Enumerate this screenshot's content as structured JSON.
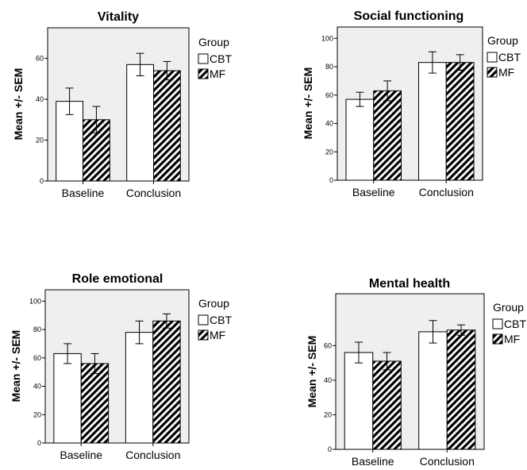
{
  "chart_data": [
    {
      "type": "bar",
      "title": "Vitality",
      "ylabel": "Mean +/- SEM",
      "xlabel": "",
      "ylim": [
        0,
        75
      ],
      "yticks": [
        0,
        20,
        40,
        60
      ],
      "categories": [
        "Baseline",
        "Conclusion"
      ],
      "series": [
        {
          "name": "CBT",
          "values": [
            39,
            57
          ],
          "errors": [
            6.5,
            5.5
          ]
        },
        {
          "name": "MF",
          "values": [
            30,
            54
          ],
          "errors": [
            6.5,
            4.5
          ]
        }
      ],
      "legend": {
        "title": "Group",
        "position": "right"
      }
    },
    {
      "type": "bar",
      "title": "Social functioning",
      "ylabel": "Mean +/- SEM",
      "xlabel": "",
      "ylim": [
        0,
        108
      ],
      "yticks": [
        0,
        20,
        40,
        60,
        80,
        100
      ],
      "categories": [
        "Baseline",
        "Conclusion"
      ],
      "series": [
        {
          "name": "CBT",
          "values": [
            57,
            83
          ],
          "errors": [
            5,
            7.5
          ]
        },
        {
          "name": "MF",
          "values": [
            63,
            83
          ],
          "errors": [
            7,
            5.5
          ]
        }
      ],
      "legend": {
        "title": "Group",
        "position": "right"
      }
    },
    {
      "type": "bar",
      "title": "Role emotional",
      "ylabel": "Mean +/- SEM",
      "xlabel": "",
      "ylim": [
        0,
        108
      ],
      "yticks": [
        0,
        20,
        40,
        60,
        80,
        100
      ],
      "categories": [
        "Baseline",
        "Conclusion"
      ],
      "series": [
        {
          "name": "CBT",
          "values": [
            63,
            78
          ],
          "errors": [
            7,
            8
          ]
        },
        {
          "name": "MF",
          "values": [
            56,
            86
          ],
          "errors": [
            7,
            5
          ]
        }
      ],
      "legend": {
        "title": "Group",
        "position": "right"
      }
    },
    {
      "type": "bar",
      "title": "Mental health",
      "ylabel": "Mean +/- SEM",
      "xlabel": "",
      "ylim": [
        0,
        90
      ],
      "yticks": [
        0,
        20,
        40,
        60
      ],
      "categories": [
        "Baseline",
        "Conclusion"
      ],
      "series": [
        {
          "name": "CBT",
          "values": [
            56,
            68
          ],
          "errors": [
            6,
            6.5
          ]
        },
        {
          "name": "MF",
          "values": [
            51,
            69
          ],
          "errors": [
            5,
            3
          ]
        }
      ],
      "legend": {
        "title": "Group",
        "position": "right"
      }
    }
  ]
}
